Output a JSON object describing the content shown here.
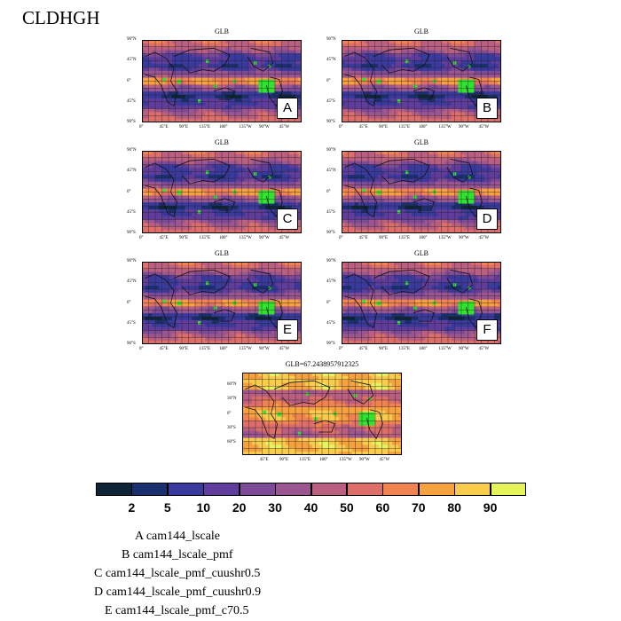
{
  "main_title": "CLDHGH",
  "chart_data": [
    {
      "type": "heatmap",
      "id": "A",
      "title": "GLB",
      "panel_label": "A"
    },
    {
      "type": "heatmap",
      "id": "B",
      "title": "GLB",
      "panel_label": "B"
    },
    {
      "type": "heatmap",
      "id": "C",
      "title": "GLB",
      "panel_label": "C"
    },
    {
      "type": "heatmap",
      "id": "D",
      "title": "GLB",
      "panel_label": "D"
    },
    {
      "type": "heatmap",
      "id": "E",
      "title": "GLB",
      "panel_label": "E"
    },
    {
      "type": "heatmap",
      "id": "F",
      "title": "GLB",
      "panel_label": "F"
    },
    {
      "type": "heatmap",
      "id": "OBS",
      "title": "GLB=67.2438957912325",
      "panel_label": ""
    }
  ],
  "axes": {
    "lat_ticks": [
      "90°N",
      "45°N",
      "0°",
      "45°S",
      "90°S"
    ],
    "lon_ticks": [
      "0°",
      "45°E",
      "90°E",
      "135°E",
      "180°",
      "135°W",
      "90°W",
      "45°W"
    ],
    "obs_lat_ticks": [
      "60°N",
      "30°N",
      "0°",
      "30°S",
      "60°S"
    ],
    "obs_lon_ticks": [
      "45°E",
      "90°E",
      "135°E",
      "180°",
      "135°W",
      "90°W",
      "45°W"
    ]
  },
  "colorbar": {
    "colors": [
      "#0e2537",
      "#1a2f6e",
      "#3a3a9e",
      "#603c9c",
      "#7d4a97",
      "#9b5691",
      "#bb5f81",
      "#de6e6a",
      "#f08350",
      "#f7a13f",
      "#f9cd4b",
      "#e6f45c"
    ],
    "labels": [
      "2",
      "5",
      "10",
      "20",
      "30",
      "40",
      "50",
      "60",
      "70",
      "80",
      "90"
    ]
  },
  "legend": [
    "A  cam144_lscale",
    "B  cam144_lscale_pmf",
    "C  cam144_lscale_pmf_cuushr0.5",
    "D  cam144_lscale_pmf_cuushr0.9",
    "E  cam144_lscale_pmf_c70.5"
  ]
}
